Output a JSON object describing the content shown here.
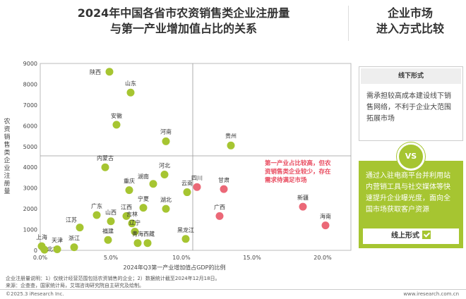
{
  "title": {
    "line1": "2024年中国各省市农资销售类企业注册量",
    "line2": "与第一产业增加值占比的关系"
  },
  "side_title": {
    "line1": "企业市场",
    "line2": "进入方式比较"
  },
  "offline": {
    "head": "线下形式",
    "body": "需承担较高成本建设线下销售网络，不利于企业大范围拓展市场"
  },
  "vs_label": "VS",
  "online": {
    "body": "通过入驻电商平台并利用站内营销工具与社交媒体等快速提升企业曝光度，面向全国市场获取客户资源",
    "foot": "线上形式"
  },
  "notes": {
    "line1": "企业注册量说明：1）仅统计经营范围包括农资销售的企业；2）数据统计截至2024年12月18日。",
    "line2": "来源：企查查，国家统计局，艾瑞咨询研究院自主研究及绘制。"
  },
  "copyright": "©2025.3 iResearch Inc.",
  "website": "www.iresearch.com.cn",
  "colors": {
    "green": "#a6c531",
    "red": "#eb6877",
    "annotation": "#e8495d"
  },
  "chart_data": {
    "type": "scatter",
    "xlabel": "2024年Q3第一产业增加值占GDP的比例",
    "ylabel_chars": [
      "农",
      "资",
      "销",
      "售",
      "类",
      "企",
      "业",
      "注",
      "册",
      "量"
    ],
    "xlim": [
      0,
      0.22
    ],
    "ylim": [
      0,
      9000
    ],
    "x_ticks": [
      "0.0%",
      "5.0%",
      "10.0%",
      "15.0%",
      "20.0%"
    ],
    "x_tick_values": [
      0,
      0.05,
      0.1,
      0.15,
      0.2
    ],
    "y_ticks": [
      0,
      1000,
      2000,
      3000,
      4000,
      5000,
      6000,
      7000,
      8000,
      9000
    ],
    "divider_x": 0.108,
    "divider_y": 4550,
    "annotation": [
      "第一产业占比较高，但农",
      "资销售类企业较少，存在",
      "需求待满足市场"
    ],
    "points": [
      {
        "name": "陕西",
        "x": 0.049,
        "y": 8600,
        "group": "green"
      },
      {
        "name": "山东",
        "x": 0.064,
        "y": 7600,
        "group": "green"
      },
      {
        "name": "安徽",
        "x": 0.054,
        "y": 6050,
        "group": "green"
      },
      {
        "name": "河南",
        "x": 0.089,
        "y": 5250,
        "group": "green"
      },
      {
        "name": "贵州",
        "x": 0.135,
        "y": 5050,
        "group": "green"
      },
      {
        "name": "内蒙古",
        "x": 0.046,
        "y": 4000,
        "group": "green"
      },
      {
        "name": "河北",
        "x": 0.088,
        "y": 3650,
        "group": "green"
      },
      {
        "name": "湖南",
        "x": 0.08,
        "y": 3200,
        "group": "green"
      },
      {
        "name": "重庆",
        "x": 0.063,
        "y": 2900,
        "group": "green"
      },
      {
        "name": "云南",
        "x": 0.104,
        "y": 2800,
        "group": "green"
      },
      {
        "name": "宁夏",
        "x": 0.073,
        "y": 2050,
        "group": "green"
      },
      {
        "name": "湖北",
        "x": 0.089,
        "y": 2000,
        "group": "green"
      },
      {
        "name": "广东",
        "x": 0.04,
        "y": 1700,
        "group": "green"
      },
      {
        "name": "江西",
        "x": 0.061,
        "y": 1650,
        "group": "green"
      },
      {
        "name": "吉林",
        "x": 0.065,
        "y": 1300,
        "group": "green"
      },
      {
        "name": "山西",
        "x": 0.05,
        "y": 1400,
        "group": "green"
      },
      {
        "name": "江苏",
        "x": 0.028,
        "y": 1100,
        "group": "green"
      },
      {
        "name": "辽宁",
        "x": 0.067,
        "y": 900,
        "group": "green"
      },
      {
        "name": "福建",
        "x": 0.048,
        "y": 500,
        "group": "green"
      },
      {
        "name": "青海",
        "x": 0.069,
        "y": 350,
        "group": "green"
      },
      {
        "name": "西藏",
        "x": 0.076,
        "y": 350,
        "group": "green"
      },
      {
        "name": "黑龙江",
        "x": 0.103,
        "y": 550,
        "group": "green"
      },
      {
        "name": "浙江",
        "x": 0.024,
        "y": 150,
        "group": "green"
      },
      {
        "name": "上海",
        "x": 0.001,
        "y": 200,
        "group": "green"
      },
      {
        "name": "北京",
        "x": 0.003,
        "y": 30,
        "group": "green"
      },
      {
        "name": "天津",
        "x": 0.012,
        "y": 50,
        "group": "green"
      },
      {
        "name": "四川",
        "x": 0.111,
        "y": 3050,
        "group": "red"
      },
      {
        "name": "甘肃",
        "x": 0.13,
        "y": 2950,
        "group": "red"
      },
      {
        "name": "广西",
        "x": 0.127,
        "y": 1650,
        "group": "red"
      },
      {
        "name": "新疆",
        "x": 0.186,
        "y": 2100,
        "group": "red"
      },
      {
        "name": "海南",
        "x": 0.202,
        "y": 1200,
        "group": "red"
      }
    ]
  }
}
